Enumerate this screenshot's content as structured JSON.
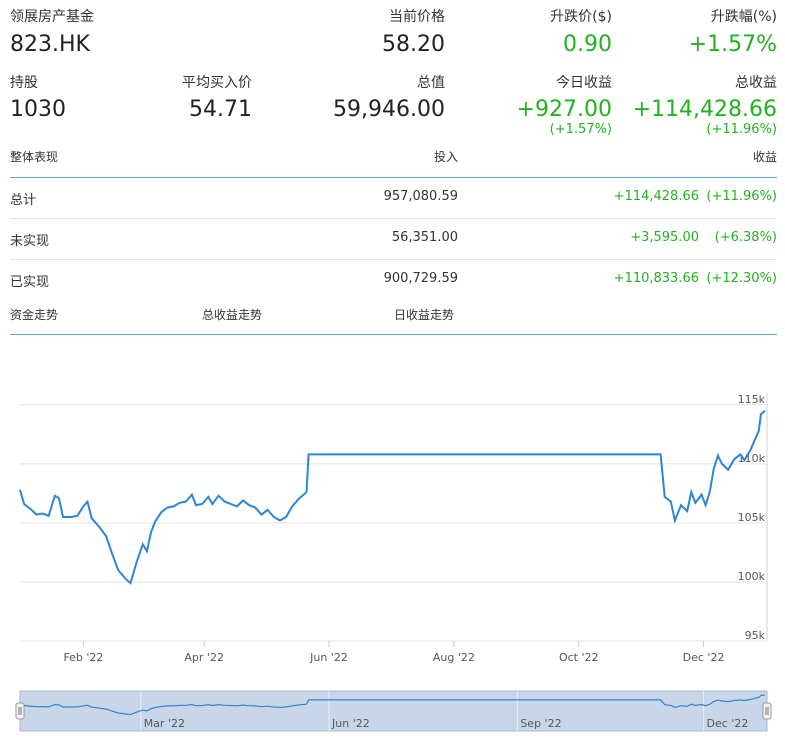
{
  "header": {
    "fund_name": "领展房产基金",
    "ticker": "823.HK",
    "current_price_label": "当前价格",
    "current_price": "58.20",
    "change_label": "升跌价($)",
    "change": "0.90",
    "change_pct_label": "升跌幅(%)",
    "change_pct": "+1.57%"
  },
  "holding": {
    "shares_label": "持股",
    "shares": "1030",
    "avg_price_label": "平均买入价",
    "avg_price": "54.71",
    "total_value_label": "总值",
    "total_value": "59,946.00",
    "today_gain_label": "今日收益",
    "today_gain": "+927.00",
    "today_gain_pct": "(+1.57%)",
    "total_gain_label": "总收益",
    "total_gain": "+114,428.66",
    "total_gain_pct": "(+11.96%)"
  },
  "performance": {
    "section_label": "整体表现",
    "invest_label": "投入",
    "gain_label": "收益",
    "rows": [
      {
        "label": "总计",
        "invest": "957,080.59",
        "gain": "+114,428.66",
        "pct": "(+11.96%)"
      },
      {
        "label": "未实现",
        "invest": "56,351.00",
        "gain": "+3,595.00",
        "pct": "(+6.38%)"
      },
      {
        "label": "已实现",
        "invest": "900,729.59",
        "gain": "+110,833.66",
        "pct": "(+12.30%)"
      }
    ]
  },
  "tabs": [
    "资金走势",
    "总收益走势",
    "日收益走势"
  ],
  "colors": {
    "accent": "#58a7e0",
    "line": "#2b86d6",
    "gain": "#22b21f",
    "navigator_fill": "#c9d6ea"
  },
  "chart_data": {
    "type": "line",
    "x_range": [
      "2022-01-01",
      "2023-01-01"
    ],
    "ylim": [
      95000,
      116000
    ],
    "y_ticks": [
      {
        "value": 95000,
        "label": "95k"
      },
      {
        "value": 100000,
        "label": "100k"
      },
      {
        "value": 105000,
        "label": "105k"
      },
      {
        "value": 110000,
        "label": "110k"
      },
      {
        "value": 115000,
        "label": "115k"
      }
    ],
    "x_ticks": [
      {
        "date": "2022-02-01",
        "label": "Feb '22"
      },
      {
        "date": "2022-04-01",
        "label": "Apr '22"
      },
      {
        "date": "2022-06-01",
        "label": "Jun '22"
      },
      {
        "date": "2022-08-01",
        "label": "Aug '22"
      },
      {
        "date": "2022-10-01",
        "label": "Oct '22"
      },
      {
        "date": "2022-12-01",
        "label": "Dec '22"
      }
    ],
    "navigator_ticks": [
      {
        "date": "2022-03-01",
        "label": "Mar '22"
      },
      {
        "date": "2022-06-01",
        "label": "Jun '22"
      },
      {
        "date": "2022-09-01",
        "label": "Sep '22"
      },
      {
        "date": "2022-12-01",
        "label": "Dec '22"
      }
    ],
    "grid": true,
    "series": [
      {
        "points": [
          [
            "2022-01-01",
            107800
          ],
          [
            "2022-01-03",
            106600
          ],
          [
            "2022-01-06",
            106200
          ],
          [
            "2022-01-09",
            105700
          ],
          [
            "2022-01-12",
            105800
          ],
          [
            "2022-01-15",
            105600
          ],
          [
            "2022-01-18",
            107300
          ],
          [
            "2022-01-20",
            107100
          ],
          [
            "2022-01-22",
            105500
          ],
          [
            "2022-01-26",
            105500
          ],
          [
            "2022-01-29",
            105600
          ],
          [
            "2022-02-01",
            106400
          ],
          [
            "2022-02-03",
            106800
          ],
          [
            "2022-02-05",
            105400
          ],
          [
            "2022-02-09",
            104600
          ],
          [
            "2022-02-12",
            103900
          ],
          [
            "2022-02-15",
            102400
          ],
          [
            "2022-02-18",
            101000
          ],
          [
            "2022-02-22",
            100200
          ],
          [
            "2022-02-24",
            99900
          ],
          [
            "2022-02-27",
            101700
          ],
          [
            "2022-03-02",
            103200
          ],
          [
            "2022-03-04",
            102600
          ],
          [
            "2022-03-06",
            104200
          ],
          [
            "2022-03-08",
            105100
          ],
          [
            "2022-03-11",
            105900
          ],
          [
            "2022-03-14",
            106300
          ],
          [
            "2022-03-17",
            106400
          ],
          [
            "2022-03-20",
            106700
          ],
          [
            "2022-03-23",
            106800
          ],
          [
            "2022-03-26",
            107400
          ],
          [
            "2022-03-28",
            106500
          ],
          [
            "2022-03-31",
            106600
          ],
          [
            "2022-04-03",
            107200
          ],
          [
            "2022-04-05",
            106600
          ],
          [
            "2022-04-08",
            107300
          ],
          [
            "2022-04-11",
            106800
          ],
          [
            "2022-04-14",
            106600
          ],
          [
            "2022-04-17",
            106400
          ],
          [
            "2022-04-20",
            106900
          ],
          [
            "2022-04-23",
            106500
          ],
          [
            "2022-04-26",
            106300
          ],
          [
            "2022-04-29",
            105700
          ],
          [
            "2022-05-02",
            106100
          ],
          [
            "2022-05-05",
            105500
          ],
          [
            "2022-05-08",
            105200
          ],
          [
            "2022-05-11",
            105500
          ],
          [
            "2022-05-14",
            106400
          ],
          [
            "2022-05-17",
            107000
          ],
          [
            "2022-05-21",
            107600
          ],
          [
            "2022-05-22",
            110800
          ],
          [
            "2022-11-10",
            110800
          ],
          [
            "2022-11-12",
            107200
          ],
          [
            "2022-11-15",
            106800
          ],
          [
            "2022-11-17",
            105200
          ],
          [
            "2022-11-20",
            106500
          ],
          [
            "2022-11-23",
            106000
          ],
          [
            "2022-11-25",
            107600
          ],
          [
            "2022-11-27",
            106700
          ],
          [
            "2022-11-30",
            107400
          ],
          [
            "2022-12-02",
            106500
          ],
          [
            "2022-12-04",
            107600
          ],
          [
            "2022-12-06",
            109600
          ],
          [
            "2022-12-08",
            110700
          ],
          [
            "2022-12-10",
            110000
          ],
          [
            "2022-12-13",
            109500
          ],
          [
            "2022-12-16",
            110400
          ],
          [
            "2022-12-19",
            110800
          ],
          [
            "2022-12-21",
            110300
          ],
          [
            "2022-12-24",
            111200
          ],
          [
            "2022-12-26",
            112000
          ],
          [
            "2022-12-28",
            112800
          ],
          [
            "2022-12-29",
            114200
          ],
          [
            "2022-12-31",
            114500
          ]
        ]
      }
    ]
  }
}
